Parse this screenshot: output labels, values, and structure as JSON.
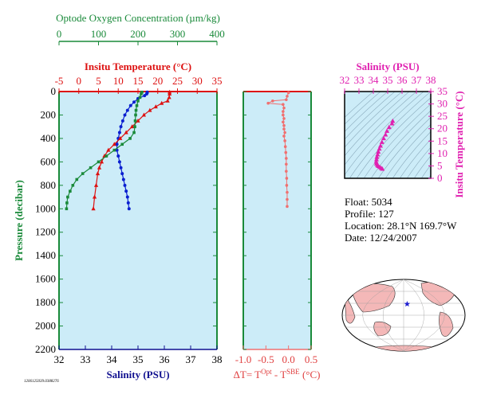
{
  "chart_data": [
    {
      "type": "line",
      "panel": "main-profile",
      "ylabel": "Pressure (decibar)",
      "ylim": [
        2200,
        0
      ],
      "yticks": [
        0,
        200,
        400,
        600,
        800,
        1000,
        1200,
        1400,
        1600,
        1800,
        2000,
        2200
      ],
      "axes": {
        "oxygen": {
          "label": "Optode Oxygen Concentration (µm/kg)",
          "range": [
            0,
            400
          ],
          "ticks": [
            0,
            100,
            200,
            300,
            400
          ],
          "color": "#1a8a3a"
        },
        "temperature": {
          "label": "Insitu Temperature (°C)",
          "range": [
            -5,
            35
          ],
          "ticks": [
            -5,
            0,
            5,
            10,
            15,
            20,
            25,
            30,
            35
          ],
          "color": "#dd1111"
        },
        "salinity": {
          "label": "Salinity (PSU)",
          "range": [
            32,
            38
          ],
          "ticks": [
            32,
            33,
            34,
            35,
            36,
            37,
            38
          ],
          "color": "#101090"
        }
      },
      "series": [
        {
          "name": "salinity",
          "axis": "salinity",
          "color": "#0a1fd0",
          "marker": "circle",
          "points": [
            [
              35.35,
              5
            ],
            [
              35.35,
              10
            ],
            [
              35.33,
              20
            ],
            [
              35.25,
              35
            ],
            [
              35.0,
              60
            ],
            [
              34.85,
              90
            ],
            [
              34.72,
              120
            ],
            [
              34.6,
              160
            ],
            [
              34.5,
              200
            ],
            [
              34.42,
              250
            ],
            [
              34.35,
              300
            ],
            [
              34.3,
              350
            ],
            [
              34.25,
              400
            ],
            [
              34.2,
              450
            ],
            [
              34.2,
              500
            ],
            [
              34.25,
              550
            ],
            [
              34.3,
              600
            ],
            [
              34.35,
              650
            ],
            [
              34.4,
              700
            ],
            [
              34.45,
              750
            ],
            [
              34.5,
              800
            ],
            [
              34.55,
              850
            ],
            [
              34.6,
              900
            ],
            [
              34.63,
              950
            ],
            [
              34.66,
              1000
            ]
          ]
        },
        {
          "name": "temperature",
          "axis": "temperature",
          "color": "#dd1111",
          "marker": "triangle",
          "points": [
            [
              23.0,
              5
            ],
            [
              23.0,
              20
            ],
            [
              22.9,
              50
            ],
            [
              22.5,
              80
            ],
            [
              21.0,
              100
            ],
            [
              19.5,
              130
            ],
            [
              18.0,
              160
            ],
            [
              16.5,
              200
            ],
            [
              15.0,
              250
            ],
            [
              13.5,
              300
            ],
            [
              12.0,
              350
            ],
            [
              10.5,
              400
            ],
            [
              9.0,
              450
            ],
            [
              7.5,
              500
            ],
            [
              6.5,
              550
            ],
            [
              5.8,
              600
            ],
            [
              5.2,
              650
            ],
            [
              4.8,
              700
            ],
            [
              4.4,
              800
            ],
            [
              4.0,
              900
            ],
            [
              3.7,
              1000
            ]
          ]
        },
        {
          "name": "oxygen",
          "axis": "oxygen",
          "color": "#1a8a3a",
          "marker": "square",
          "points": [
            [
              210,
              5
            ],
            [
              208,
              20
            ],
            [
              205,
              50
            ],
            [
              200,
              80
            ],
            [
              197,
              120
            ],
            [
              195,
              160
            ],
            [
              194,
              200
            ],
            [
              193,
              250
            ],
            [
              192,
              300
            ],
            [
              190,
              350
            ],
            [
              180,
              400
            ],
            [
              160,
              450
            ],
            [
              140,
              500
            ],
            [
              120,
              550
            ],
            [
              100,
              600
            ],
            [
              80,
              650
            ],
            [
              60,
              700
            ],
            [
              45,
              750
            ],
            [
              35,
              800
            ],
            [
              28,
              850
            ],
            [
              22,
              900
            ],
            [
              20,
              950
            ],
            [
              19,
              1000
            ]
          ]
        }
      ]
    },
    {
      "type": "line",
      "panel": "temperature-difference",
      "xlabel": "ΔT= T",
      "xlabel_sup1": "Opt",
      "xlabel_mid": " - T",
      "xlabel_sup2": "SBE",
      "xlabel_end": " (°C)",
      "xlim": [
        -1.0,
        0.5
      ],
      "xticks": [
        -1.0,
        -0.5,
        0.0,
        0.5
      ],
      "xticklabels": [
        "-1.0",
        "-0.5",
        "0.0",
        "0.5"
      ],
      "ylim": [
        2200,
        0
      ],
      "series": [
        {
          "name": "dT",
          "color": "#f07070",
          "marker": "circle",
          "points": [
            [
              0.0,
              10
            ],
            [
              -0.03,
              40
            ],
            [
              -0.05,
              70
            ],
            [
              -0.35,
              80
            ],
            [
              -0.45,
              100
            ],
            [
              -0.12,
              110
            ],
            [
              -0.1,
              140
            ],
            [
              -0.12,
              170
            ],
            [
              -0.12,
              200
            ],
            [
              -0.1,
              230
            ],
            [
              -0.12,
              260
            ],
            [
              -0.1,
              290
            ],
            [
              -0.1,
              320
            ],
            [
              -0.08,
              350
            ],
            [
              -0.1,
              380
            ],
            [
              -0.08,
              420
            ],
            [
              -0.07,
              470
            ],
            [
              -0.06,
              520
            ],
            [
              -0.05,
              570
            ],
            [
              -0.05,
              620
            ],
            [
              -0.05,
              680
            ],
            [
              -0.04,
              740
            ],
            [
              -0.04,
              800
            ],
            [
              -0.03,
              860
            ],
            [
              -0.03,
              920
            ],
            [
              -0.03,
              980
            ]
          ]
        }
      ]
    },
    {
      "type": "scatter",
      "panel": "theta-s",
      "title": "Salinity (PSU)",
      "ylabel": "Insitu Temperature (°C)",
      "xlim": [
        32,
        38
      ],
      "ylim": [
        0,
        35
      ],
      "xticks": [
        32,
        33,
        34,
        35,
        36,
        37,
        38
      ],
      "yticks": [
        0,
        5,
        10,
        15,
        20,
        25,
        30,
        35
      ],
      "color": "#e020b0",
      "points": [
        [
          35.35,
          23.0
        ],
        [
          35.3,
          22.0
        ],
        [
          35.1,
          20.5
        ],
        [
          34.95,
          19.0
        ],
        [
          34.85,
          17.5
        ],
        [
          34.72,
          16.0
        ],
        [
          34.6,
          14.5
        ],
        [
          34.5,
          13.0
        ],
        [
          34.42,
          11.8
        ],
        [
          34.35,
          10.6
        ],
        [
          34.3,
          9.5
        ],
        [
          34.25,
          8.5
        ],
        [
          34.22,
          7.5
        ],
        [
          34.2,
          6.6
        ],
        [
          34.22,
          5.8
        ],
        [
          34.28,
          5.2
        ],
        [
          34.35,
          4.8
        ],
        [
          34.45,
          4.4
        ],
        [
          34.55,
          4.0
        ],
        [
          34.63,
          3.7
        ]
      ]
    }
  ],
  "info": {
    "float": "Float:  5034",
    "profile": "Profile:  127",
    "location": "Location:  28.1°N  169.7°W",
    "date": "Date:  12/24/2007"
  },
  "footnote": "1206125039.0388276",
  "map": {
    "float_lat": 28.1,
    "float_lon": -169.7,
    "marker_color": "#2020d0",
    "land_color": "#f4b8b8",
    "ocean_color": "#ffffff"
  }
}
